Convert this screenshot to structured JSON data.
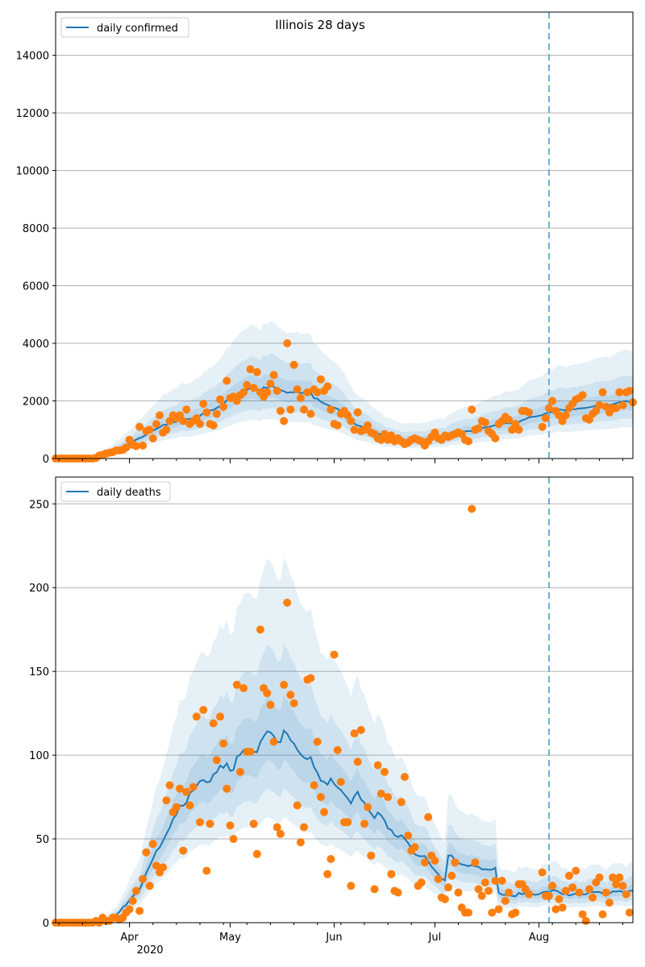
{
  "chart_data": [
    {
      "type": "line",
      "title": "Illinois 28 days",
      "legend": {
        "label": "daily confirmed",
        "position": "top-left"
      },
      "colors": {
        "line": "#1f77b4",
        "points": "#ff7f0e",
        "band": "#1f77b4",
        "marker_line": "#6aaed6"
      },
      "ylim": [
        0,
        15500
      ],
      "yticks": [
        0,
        2000,
        4000,
        6000,
        8000,
        10000,
        12000,
        14000
      ],
      "grid": "horizontal",
      "forecast_start_day": 147,
      "points": [
        [
          0,
          0
        ],
        [
          1,
          0
        ],
        [
          2,
          0
        ],
        [
          3,
          0
        ],
        [
          4,
          0
        ],
        [
          5,
          0
        ],
        [
          6,
          0
        ],
        [
          7,
          0
        ],
        [
          8,
          0
        ],
        [
          9,
          0
        ],
        [
          10,
          0
        ],
        [
          11,
          0
        ],
        [
          12,
          20
        ],
        [
          13,
          100
        ],
        [
          14,
          130
        ],
        [
          15,
          170
        ],
        [
          16,
          200
        ],
        [
          17,
          220
        ],
        [
          18,
          280
        ],
        [
          19,
          280
        ],
        [
          20,
          300
        ],
        [
          21,
          380
        ],
        [
          22,
          650
        ],
        [
          23,
          480
        ],
        [
          24,
          430
        ],
        [
          25,
          1100
        ],
        [
          26,
          450
        ],
        [
          27,
          950
        ],
        [
          28,
          1000
        ],
        [
          29,
          700
        ],
        [
          30,
          1200
        ],
        [
          31,
          1500
        ],
        [
          32,
          900
        ],
        [
          33,
          1000
        ],
        [
          34,
          1300
        ],
        [
          35,
          1500
        ],
        [
          36,
          1400
        ],
        [
          37,
          1500
        ],
        [
          38,
          1300
        ],
        [
          39,
          1700
        ],
        [
          40,
          1200
        ],
        [
          41,
          1300
        ],
        [
          42,
          1400
        ],
        [
          43,
          1200
        ],
        [
          44,
          1900
        ],
        [
          45,
          1600
        ],
        [
          46,
          1200
        ],
        [
          47,
          1150
        ],
        [
          48,
          1550
        ],
        [
          49,
          2050
        ],
        [
          50,
          1800
        ],
        [
          51,
          2700
        ],
        [
          52,
          2100
        ],
        [
          53,
          2150
        ],
        [
          54,
          2000
        ],
        [
          55,
          2200
        ],
        [
          56,
          2300
        ],
        [
          57,
          2550
        ],
        [
          58,
          3100
        ],
        [
          59,
          2450
        ],
        [
          60,
          3000
        ],
        [
          61,
          2300
        ],
        [
          62,
          2150
        ],
        [
          63,
          2300
        ],
        [
          64,
          2600
        ],
        [
          65,
          2900
        ],
        [
          66,
          2350
        ],
        [
          67,
          1650
        ],
        [
          68,
          1300
        ],
        [
          69,
          4000
        ],
        [
          70,
          1700
        ],
        [
          71,
          3250
        ],
        [
          72,
          2400
        ],
        [
          73,
          2100
        ],
        [
          74,
          1700
        ],
        [
          75,
          2300
        ],
        [
          76,
          1550
        ],
        [
          77,
          2400
        ],
        [
          78,
          2300
        ],
        [
          79,
          2750
        ],
        [
          80,
          2350
        ],
        [
          81,
          2500
        ],
        [
          82,
          1700
        ],
        [
          83,
          1200
        ],
        [
          84,
          1150
        ],
        [
          85,
          1550
        ],
        [
          86,
          1650
        ],
        [
          87,
          1500
        ],
        [
          88,
          1300
        ],
        [
          89,
          1000
        ],
        [
          90,
          1600
        ],
        [
          91,
          950
        ],
        [
          92,
          1000
        ],
        [
          93,
          1150
        ],
        [
          94,
          900
        ],
        [
          95,
          850
        ],
        [
          96,
          700
        ],
        [
          97,
          650
        ],
        [
          98,
          850
        ],
        [
          99,
          650
        ],
        [
          100,
          800
        ],
        [
          101,
          600
        ],
        [
          102,
          700
        ],
        [
          103,
          600
        ],
        [
          104,
          500
        ],
        [
          105,
          550
        ],
        [
          106,
          650
        ],
        [
          107,
          700
        ],
        [
          108,
          650
        ],
        [
          109,
          600
        ],
        [
          110,
          450
        ],
        [
          111,
          600
        ],
        [
          112,
          750
        ],
        [
          113,
          900
        ],
        [
          114,
          700
        ],
        [
          115,
          650
        ],
        [
          116,
          800
        ],
        [
          117,
          750
        ],
        [
          118,
          800
        ],
        [
          119,
          850
        ],
        [
          120,
          900
        ],
        [
          121,
          850
        ],
        [
          122,
          650
        ],
        [
          123,
          600
        ],
        [
          124,
          1700
        ],
        [
          125,
          1000
        ],
        [
          126,
          1050
        ],
        [
          127,
          1300
        ],
        [
          128,
          1250
        ],
        [
          129,
          950
        ],
        [
          130,
          850
        ],
        [
          131,
          700
        ],
        [
          132,
          1200
        ],
        [
          133,
          1300
        ],
        [
          134,
          1450
        ],
        [
          135,
          1350
        ],
        [
          136,
          1000
        ],
        [
          137,
          1200
        ],
        [
          138,
          1000
        ],
        [
          139,
          1650
        ],
        [
          140,
          1650
        ],
        [
          141,
          1600
        ],
        [
          145,
          1100
        ],
        [
          146,
          1400
        ],
        [
          147,
          1750
        ],
        [
          148,
          2000
        ],
        [
          149,
          1650
        ],
        [
          150,
          1500
        ],
        [
          151,
          1300
        ],
        [
          152,
          1500
        ],
        [
          153,
          1750
        ],
        [
          154,
          1900
        ],
        [
          155,
          2050
        ],
        [
          156,
          2100
        ],
        [
          157,
          2200
        ],
        [
          158,
          1400
        ],
        [
          159,
          1350
        ],
        [
          160,
          1550
        ],
        [
          161,
          1650
        ],
        [
          162,
          1850
        ],
        [
          163,
          2300
        ],
        [
          164,
          1800
        ],
        [
          165,
          1600
        ],
        [
          166,
          1750
        ],
        [
          167,
          1750
        ],
        [
          168,
          2300
        ],
        [
          169,
          1850
        ],
        [
          170,
          2300
        ],
        [
          171,
          2350
        ],
        [
          172,
          1950
        ]
      ]
    },
    {
      "type": "line",
      "legend": {
        "label": "daily deaths",
        "position": "top-left"
      },
      "colors": {
        "line": "#1f77b4",
        "points": "#ff7f0e",
        "band": "#1f77b4",
        "marker_line": "#6aaed6"
      },
      "ylim": [
        0,
        266
      ],
      "yticks": [
        0,
        50,
        100,
        150,
        200,
        250
      ],
      "grid": "horizontal",
      "forecast_start_day": 147,
      "points": [
        [
          0,
          0
        ],
        [
          1,
          0
        ],
        [
          2,
          0
        ],
        [
          3,
          0
        ],
        [
          4,
          0
        ],
        [
          5,
          0
        ],
        [
          6,
          0
        ],
        [
          7,
          0
        ],
        [
          8,
          0
        ],
        [
          9,
          0
        ],
        [
          10,
          0
        ],
        [
          11,
          0
        ],
        [
          12,
          1
        ],
        [
          13,
          0
        ],
        [
          14,
          3
        ],
        [
          15,
          1
        ],
        [
          16,
          1
        ],
        [
          17,
          3
        ],
        [
          18,
          3
        ],
        [
          19,
          2
        ],
        [
          20,
          3
        ],
        [
          21,
          6
        ],
        [
          22,
          8
        ],
        [
          23,
          13
        ],
        [
          24,
          19
        ],
        [
          25,
          7
        ],
        [
          26,
          26
        ],
        [
          27,
          42
        ],
        [
          28,
          22
        ],
        [
          29,
          47
        ],
        [
          30,
          34
        ],
        [
          31,
          30
        ],
        [
          32,
          33
        ],
        [
          33,
          73
        ],
        [
          34,
          82
        ],
        [
          35,
          66
        ],
        [
          36,
          69
        ],
        [
          37,
          80
        ],
        [
          38,
          43
        ],
        [
          39,
          78
        ],
        [
          40,
          70
        ],
        [
          41,
          81
        ],
        [
          42,
          123
        ],
        [
          43,
          60
        ],
        [
          44,
          127
        ],
        [
          45,
          31
        ],
        [
          46,
          59
        ],
        [
          47,
          119
        ],
        [
          48,
          97
        ],
        [
          49,
          123
        ],
        [
          50,
          107
        ],
        [
          51,
          80
        ],
        [
          52,
          58
        ],
        [
          53,
          50
        ],
        [
          54,
          142
        ],
        [
          55,
          90
        ],
        [
          56,
          140
        ],
        [
          57,
          102
        ],
        [
          58,
          102
        ],
        [
          59,
          59
        ],
        [
          60,
          41
        ],
        [
          61,
          175
        ],
        [
          62,
          140
        ],
        [
          63,
          137
        ],
        [
          64,
          130
        ],
        [
          65,
          108
        ],
        [
          66,
          57
        ],
        [
          67,
          53
        ],
        [
          68,
          142
        ],
        [
          69,
          191
        ],
        [
          70,
          136
        ],
        [
          71,
          131
        ],
        [
          72,
          70
        ],
        [
          73,
          48
        ],
        [
          74,
          57
        ],
        [
          75,
          145
        ],
        [
          76,
          146
        ],
        [
          77,
          82
        ],
        [
          78,
          108
        ],
        [
          79,
          75
        ],
        [
          80,
          66
        ],
        [
          81,
          29
        ],
        [
          82,
          38
        ],
        [
          83,
          160
        ],
        [
          84,
          103
        ],
        [
          85,
          84
        ],
        [
          86,
          60
        ],
        [
          87,
          60
        ],
        [
          88,
          22
        ],
        [
          89,
          113
        ],
        [
          90,
          96
        ],
        [
          91,
          115
        ],
        [
          92,
          59
        ],
        [
          93,
          69
        ],
        [
          94,
          40
        ],
        [
          95,
          20
        ],
        [
          96,
          94
        ],
        [
          97,
          77
        ],
        [
          98,
          90
        ],
        [
          99,
          75
        ],
        [
          100,
          29
        ],
        [
          101,
          19
        ],
        [
          102,
          18
        ],
        [
          103,
          72
        ],
        [
          104,
          87
        ],
        [
          105,
          52
        ],
        [
          106,
          43
        ],
        [
          107,
          45
        ],
        [
          108,
          22
        ],
        [
          109,
          24
        ],
        [
          110,
          36
        ],
        [
          111,
          63
        ],
        [
          112,
          40
        ],
        [
          113,
          37
        ],
        [
          114,
          26
        ],
        [
          115,
          15
        ],
        [
          116,
          14
        ],
        [
          117,
          21
        ],
        [
          118,
          28
        ],
        [
          119,
          36
        ],
        [
          120,
          18
        ],
        [
          121,
          9
        ],
        [
          122,
          6
        ],
        [
          123,
          6
        ],
        [
          124,
          247
        ],
        [
          125,
          36
        ],
        [
          126,
          20
        ],
        [
          127,
          16
        ],
        [
          128,
          24
        ],
        [
          129,
          19
        ],
        [
          130,
          6
        ],
        [
          131,
          25
        ],
        [
          132,
          8
        ],
        [
          133,
          25
        ],
        [
          134,
          13
        ],
        [
          135,
          18
        ],
        [
          136,
          5
        ],
        [
          137,
          6
        ],
        [
          138,
          23
        ],
        [
          139,
          23
        ],
        [
          140,
          20
        ],
        [
          141,
          17
        ],
        [
          145,
          30
        ],
        [
          146,
          16
        ],
        [
          147,
          16
        ],
        [
          148,
          22
        ],
        [
          149,
          8
        ],
        [
          150,
          14
        ],
        [
          151,
          9
        ],
        [
          152,
          19
        ],
        [
          153,
          28
        ],
        [
          154,
          21
        ],
        [
          155,
          31
        ],
        [
          156,
          18
        ],
        [
          157,
          5
        ],
        [
          158,
          1
        ],
        [
          159,
          20
        ],
        [
          160,
          15
        ],
        [
          161,
          24
        ],
        [
          162,
          27
        ],
        [
          163,
          5
        ],
        [
          164,
          18
        ],
        [
          165,
          12
        ],
        [
          166,
          27
        ],
        [
          167,
          23
        ],
        [
          168,
          27
        ],
        [
          169,
          22
        ],
        [
          170,
          17
        ],
        [
          171,
          6
        ]
      ]
    }
  ],
  "x_axis": {
    "month_labels": [
      {
        "label": "Apr",
        "day": 22
      },
      {
        "label": "May",
        "day": 52
      },
      {
        "label": "Jun",
        "day": 83
      },
      {
        "label": "Jul",
        "day": 113
      },
      {
        "label": "Aug",
        "day": 144
      }
    ],
    "year_label": "2020",
    "day_max": 172
  }
}
